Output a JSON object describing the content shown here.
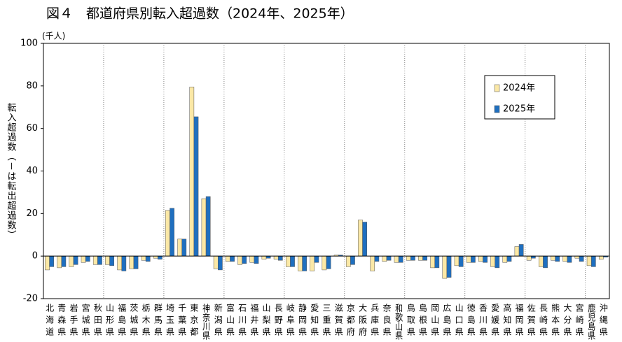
{
  "chart_data": {
    "type": "bar",
    "title": "図４　都道府県別転入超過数（2024年、2025年）",
    "unit": "(千人)",
    "y_label": "転入超過数（－は転出超過数）",
    "categories": [
      "北海道",
      "青森県",
      "岩手県",
      "宮城県",
      "秋田県",
      "山形県",
      "福島県",
      "茨城県",
      "栃木県",
      "群馬県",
      "埼玉県",
      "千葉県",
      "東京都",
      "神奈川県",
      "新潟県",
      "富山県",
      "石川県",
      "福井県",
      "山梨県",
      "長野県",
      "岐阜県",
      "静岡県",
      "愛知県",
      "三重県",
      "滋賀県",
      "京都府",
      "大阪府",
      "兵庫県",
      "奈良県",
      "和歌山県",
      "鳥取県",
      "島根県",
      "岡山県",
      "広島県",
      "山口県",
      "徳島県",
      "香川県",
      "愛媛県",
      "高知県",
      "福岡県",
      "佐賀県",
      "長崎県",
      "熊本県",
      "大分県",
      "宮崎県",
      "鹿児島県",
      "沖縄県"
    ],
    "series": [
      {
        "name": "2024年",
        "color": "#fbe8a6",
        "values": [
          -6.5,
          -5.5,
          -5,
          -3,
          -4,
          -4,
          -6.5,
          -6,
          -2,
          -1,
          21.5,
          8,
          79.5,
          27,
          -6,
          -2.5,
          -4,
          -3,
          -1.5,
          -1.5,
          -5,
          -7,
          -7,
          -6.5,
          0.5,
          -5,
          17,
          -7,
          -2.5,
          -3,
          -2,
          -2,
          -5.5,
          -10.5,
          -4.5,
          -3,
          -2.5,
          -5,
          -3,
          4.5,
          -2,
          -5,
          -2,
          -2.5,
          -1,
          -4.5,
          -1.5
        ]
      },
      {
        "name": "2025年",
        "color": "#1f6fbf",
        "values": [
          -5,
          -5,
          -4,
          -2.5,
          -4,
          -4.5,
          -7,
          -6,
          -2.5,
          -1.5,
          22.5,
          8,
          65.5,
          28,
          -6.5,
          -2.5,
          -3.5,
          -3.5,
          -1,
          -2,
          -5,
          -7,
          -3,
          -6,
          0.5,
          -4,
          16,
          -2.5,
          -2,
          -3,
          -2,
          -2,
          -5.5,
          -10,
          -5,
          -3,
          -3,
          -5.5,
          -2.5,
          5.5,
          -1,
          -5.5,
          -2.5,
          -3,
          -2.5,
          -5,
          -0.5
        ]
      }
    ],
    "ylim": [
      -20,
      100
    ],
    "yticks": [
      -20,
      0,
      20,
      40,
      60,
      80,
      100
    ],
    "legend": "upper right"
  }
}
